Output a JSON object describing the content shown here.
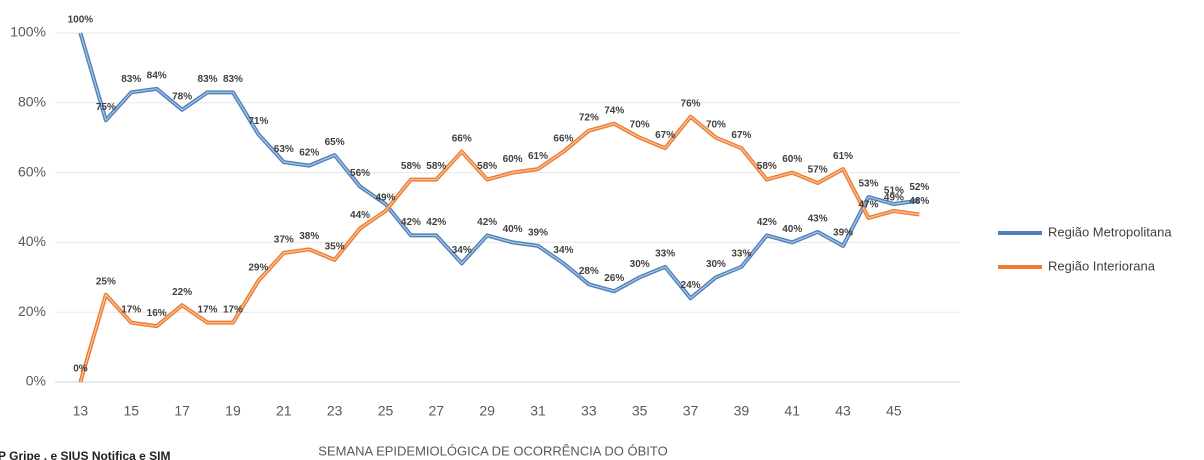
{
  "chart_data": {
    "type": "line",
    "x_label": "SEMANA EPIDEMIOLÓGICA DE OCORRÊNCIA DO ÓBITO",
    "source": "P Gripe , e SIUS Notifica e SIM",
    "x": [
      13,
      14,
      15,
      16,
      17,
      18,
      19,
      20,
      21,
      22,
      23,
      24,
      25,
      26,
      27,
      28,
      29,
      30,
      31,
      32,
      33,
      34,
      35,
      36,
      37,
      38,
      39,
      40,
      41,
      42,
      43,
      44,
      45,
      46
    ],
    "series": [
      {
        "name": "Região Metropolitana",
        "color": "#4f81bd",
        "values": [
          100,
          75,
          83,
          84,
          78,
          83,
          83,
          71,
          63,
          62,
          65,
          56,
          51,
          42,
          42,
          34,
          42,
          40,
          39,
          34,
          28,
          26,
          30,
          33,
          24,
          30,
          33,
          42,
          40,
          43,
          39,
          53,
          51,
          52
        ],
        "value_labels": [
          "100%",
          "75%",
          "83%",
          "84%",
          "78%",
          "83%",
          "83%",
          "71%",
          "63%",
          "62%",
          "65%",
          "56%",
          null,
          "42%",
          "42%",
          "34%",
          "42%",
          "40%",
          "39%",
          "34%",
          "28%",
          "26%",
          "30%",
          "33%",
          "24%",
          "30%",
          "33%",
          "42%",
          "40%",
          "43%",
          "39%",
          "53%",
          "51%",
          "52%"
        ]
      },
      {
        "name": "Região Interiorana",
        "color": "#ed7d31",
        "values": [
          0,
          25,
          17,
          16,
          22,
          17,
          17,
          29,
          37,
          38,
          35,
          44,
          49,
          58,
          58,
          66,
          58,
          60,
          61,
          66,
          72,
          74,
          70,
          67,
          76,
          70,
          67,
          58,
          60,
          57,
          61,
          47,
          49,
          48
        ],
        "value_labels": [
          "0%",
          "25%",
          "17%",
          "16%",
          "22%",
          "17%",
          "17%",
          "29%",
          "37%",
          "38%",
          "35%",
          "44%",
          "49%",
          "58%",
          "58%",
          "66%",
          "58%",
          "60%",
          "61%",
          "66%",
          "72%",
          "74%",
          "70%",
          "67%",
          "76%",
          "70%",
          "67%",
          "58%",
          "60%",
          "57%",
          "61%",
          "47%",
          "49%",
          "48%"
        ]
      }
    ],
    "xlim": [
      12,
      47.6
    ],
    "xticks": [
      13,
      15,
      17,
      19,
      21,
      23,
      25,
      27,
      29,
      31,
      33,
      35,
      37,
      39,
      41,
      43,
      45
    ],
    "ylim": [
      0,
      100
    ],
    "yticks": [
      {
        "value": 0,
        "label": "0%"
      },
      {
        "value": 20,
        "label": "20%"
      },
      {
        "value": 40,
        "label": "40%"
      },
      {
        "value": 60,
        "label": "60%"
      },
      {
        "value": 80,
        "label": "80%"
      },
      {
        "value": 100,
        "label": "100%"
      }
    ],
    "grid": true,
    "legend": "right"
  }
}
